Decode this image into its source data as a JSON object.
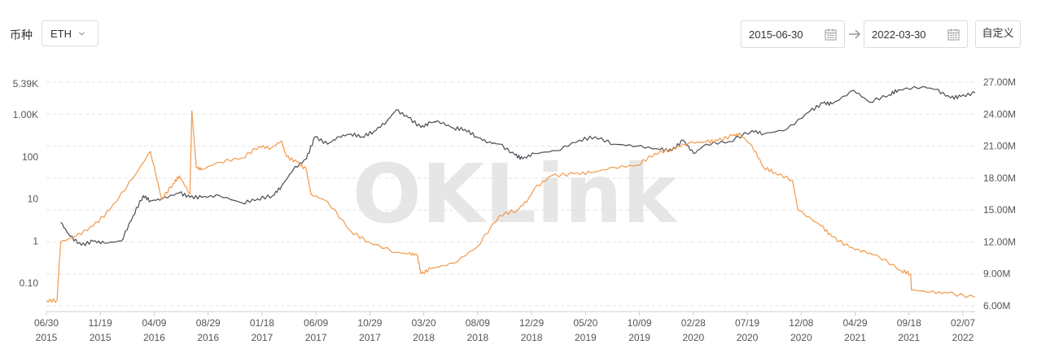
{
  "toolbar": {
    "coin_label": "币种",
    "coin_value": "ETH",
    "start_date": "2015-06-30",
    "end_date": "2022-03-30",
    "custom_label": "自定义"
  },
  "watermark": "OKLink",
  "chart_data": {
    "type": "line",
    "x_ticks": [
      [
        "06/30",
        "2015"
      ],
      [
        "11/19",
        "2015"
      ],
      [
        "04/09",
        "2016"
      ],
      [
        "08/29",
        "2016"
      ],
      [
        "01/18",
        "2017"
      ],
      [
        "06/09",
        "2017"
      ],
      [
        "10/29",
        "2017"
      ],
      [
        "03/20",
        "2018"
      ],
      [
        "08/09",
        "2018"
      ],
      [
        "12/29",
        "2018"
      ],
      [
        "05/20",
        "2019"
      ],
      [
        "10/09",
        "2019"
      ],
      [
        "02/28",
        "2020"
      ],
      [
        "07/19",
        "2020"
      ],
      [
        "12/08",
        "2020"
      ],
      [
        "04/29",
        "2021"
      ],
      [
        "09/18",
        "2021"
      ],
      [
        "02/07",
        "2022"
      ]
    ],
    "left_axis": {
      "scale": "log",
      "ticks": [
        "5.39K",
        "1.00K",
        "100",
        "10",
        "1",
        "0.10"
      ]
    },
    "right_axis": {
      "scale": "linear",
      "ticks": [
        "27.00M",
        "24.00M",
        "21.00M",
        "18.00M",
        "15.00M",
        "12.00M",
        "9.00M",
        "6.00M"
      ],
      "ylim": [
        6000000,
        27000000
      ]
    },
    "grid": true,
    "series": [
      {
        "axis": "left",
        "color": "#4b4b55",
        "x": [
          "2015-08-07",
          "2015-09-01",
          "2015-10-01",
          "2015-11-01",
          "2015-12-01",
          "2016-01-15",
          "2016-02-15",
          "2016-03-13",
          "2016-04-01",
          "2016-05-01",
          "2016-06-17",
          "2016-07-15",
          "2016-08-15",
          "2016-10-01",
          "2016-12-01",
          "2017-01-10",
          "2017-02-20",
          "2017-03-15",
          "2017-04-15",
          "2017-05-20",
          "2017-06-12",
          "2017-07-15",
          "2017-08-15",
          "2017-09-15",
          "2017-10-15",
          "2017-11-15",
          "2017-12-20",
          "2018-01-13",
          "2018-02-15",
          "2018-03-20",
          "2018-04-15",
          "2018-05-05",
          "2018-06-15",
          "2018-07-15",
          "2018-08-15",
          "2018-09-15",
          "2018-10-15",
          "2018-11-25",
          "2018-12-15",
          "2019-01-15",
          "2019-03-15",
          "2019-05-15",
          "2019-06-25",
          "2019-08-15",
          "2019-10-15",
          "2019-12-15",
          "2020-01-15",
          "2020-02-14",
          "2020-03-13",
          "2020-04-15",
          "2020-06-15",
          "2020-08-15",
          "2020-09-15",
          "2020-11-15",
          "2021-01-15",
          "2021-02-20",
          "2021-03-15",
          "2021-05-12",
          "2021-06-22",
          "2021-08-15",
          "2021-09-07",
          "2021-11-10",
          "2021-12-15",
          "2022-01-24",
          "2022-02-20",
          "2022-03-30"
        ],
        "y": [
          2.8,
          1.3,
          0.8,
          1.0,
          0.9,
          1.0,
          4,
          12,
          9,
          10,
          14,
          11,
          11,
          12,
          8,
          10,
          12,
          20,
          50,
          90,
          300,
          200,
          300,
          350,
          300,
          400,
          700,
          1300,
          850,
          500,
          650,
          700,
          480,
          450,
          300,
          220,
          200,
          110,
          90,
          120,
          140,
          250,
          300,
          200,
          180,
          150,
          140,
          250,
          120,
          200,
          230,
          420,
          350,
          450,
          1200,
          1900,
          1800,
          3800,
          2000,
          3000,
          3900,
          4600,
          4000,
          2500,
          2700,
          3300
        ]
      },
      {
        "axis": "right",
        "color": "#f2994a",
        "x": [
          "2015-06-30",
          "2015-07-28",
          "2015-08-07",
          "2015-09-15",
          "2015-11-01",
          "2015-12-15",
          "2016-02-15",
          "2016-04-01",
          "2016-05-01",
          "2016-06-01",
          "2016-06-17",
          "2016-07-15",
          "2016-07-20",
          "2016-07-25",
          "2016-08-01",
          "2016-08-15",
          "2016-10-01",
          "2016-12-01",
          "2017-01-15",
          "2017-02-15",
          "2017-03-15",
          "2017-03-28",
          "2017-04-25",
          "2017-05-20",
          "2017-06-01",
          "2017-07-15",
          "2017-09-15",
          "2017-11-01",
          "2018-01-15",
          "2018-02-15",
          "2018-03-10",
          "2018-03-20",
          "2018-04-15",
          "2018-06-15",
          "2018-08-15",
          "2018-10-15",
          "2018-12-01",
          "2018-12-30",
          "2019-01-15",
          "2019-03-01",
          "2019-05-01",
          "2019-06-15",
          "2019-08-15",
          "2019-10-15",
          "2019-12-01",
          "2020-01-15",
          "2020-03-01",
          "2020-04-15",
          "2020-05-15",
          "2020-06-25",
          "2020-07-15",
          "2020-08-15",
          "2020-09-15",
          "2020-10-15",
          "2020-11-30",
          "2020-12-15",
          "2021-02-15",
          "2021-03-15",
          "2021-05-01",
          "2021-06-15",
          "2021-07-15",
          "2021-09-15",
          "2021-10-10",
          "2021-10-12",
          "2021-12-01",
          "2022-01-15",
          "2022-03-30"
        ],
        "y": [
          6.5,
          6.5,
          12.0,
          12.5,
          13.5,
          15.0,
          18.0,
          20.5,
          16.0,
          17.5,
          18.2,
          16.5,
          24.3,
          22.0,
          19.0,
          18.8,
          19.5,
          19.9,
          21.0,
          20.8,
          21.5,
          20.0,
          19.5,
          18.8,
          16.5,
          15.8,
          13.0,
          12.0,
          11.0,
          10.9,
          10.8,
          9.0,
          9.5,
          10.0,
          11.5,
          14.5,
          15.0,
          16.0,
          17.0,
          18.2,
          18.4,
          18.5,
          19.0,
          19.2,
          20.3,
          20.7,
          21.3,
          21.4,
          21.5,
          22.0,
          22.1,
          21.0,
          19.0,
          18.5,
          17.8,
          15.0,
          13.5,
          12.5,
          11.5,
          11.0,
          10.7,
          9.3,
          9.0,
          7.5,
          7.3,
          7.2,
          6.8
        ]
      }
    ]
  }
}
